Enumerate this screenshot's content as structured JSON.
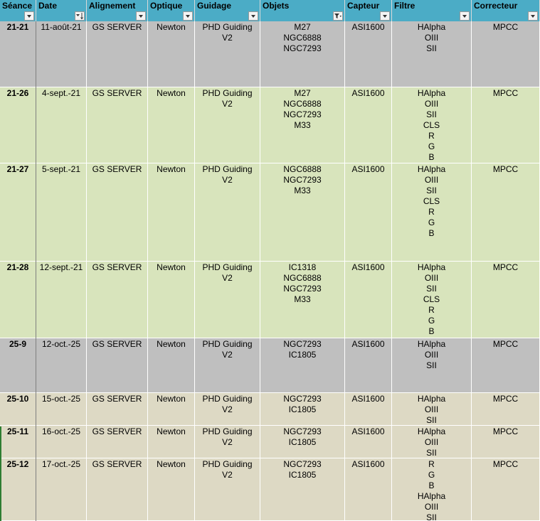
{
  "columns": [
    {
      "key": "seance",
      "label": "Séance",
      "filter": "dropdown"
    },
    {
      "key": "date",
      "label": "Date",
      "filter": "sorted"
    },
    {
      "key": "alignement",
      "label": "Alignement",
      "filter": "dropdown"
    },
    {
      "key": "optique",
      "label": "Optique",
      "filter": "dropdown"
    },
    {
      "key": "guidage",
      "label": "Guidage",
      "filter": "dropdown"
    },
    {
      "key": "objets",
      "label": "Objets",
      "filter": "filtered"
    },
    {
      "key": "capteur",
      "label": "Capteur",
      "filter": "dropdown"
    },
    {
      "key": "filtre",
      "label": "Filtre",
      "filter": "dropdown"
    },
    {
      "key": "correcteur",
      "label": "Correcteur",
      "filter": "dropdown"
    }
  ],
  "colors": {
    "header": "#4bacc6",
    "gray": "#bfbfbf",
    "green": "#d8e4bc",
    "tan": "#ddd9c4"
  },
  "rows": [
    {
      "color": "gray",
      "seance": "21-21",
      "date": "11-août-21",
      "alignement": "GS SERVER",
      "optique": "Newton",
      "guidage": [
        "PHD Guiding",
        "V2"
      ],
      "objets": [
        "M27",
        "NGC6888",
        "NGC7293"
      ],
      "capteur": "ASI1600",
      "filtre": [
        "HAlpha",
        "OIII",
        "SII"
      ],
      "correcteur": "MPCC"
    },
    {
      "color": "green",
      "seance": "21-26",
      "date": "4-sept.-21",
      "alignement": "GS SERVER",
      "optique": "Newton",
      "guidage": [
        "PHD Guiding",
        "V2"
      ],
      "objets": [
        "M27",
        "NGC6888",
        "NGC7293",
        "M33"
      ],
      "capteur": "ASI1600",
      "filtre": [
        "HAlpha",
        "OIII",
        "SII",
        "CLS",
        "R",
        "G",
        "B"
      ],
      "correcteur": "MPCC"
    },
    {
      "color": "green",
      "seance": "21-27",
      "date": "5-sept.-21",
      "alignement": "GS SERVER",
      "optique": "Newton",
      "guidage": [
        "PHD Guiding",
        "V2"
      ],
      "objets": [
        "NGC6888",
        "NGC7293",
        "M33"
      ],
      "capteur": "ASI1600",
      "filtre": [
        "HAlpha",
        "OIII",
        "SII",
        "CLS",
        "R",
        "G",
        "B"
      ],
      "correcteur": "MPCC"
    },
    {
      "color": "green",
      "seance": "21-28",
      "date": "12-sept.-21",
      "alignement": "GS SERVER",
      "optique": "Newton",
      "guidage": [
        "PHD Guiding",
        "V2"
      ],
      "objets": [
        "IC1318",
        "NGC6888",
        "NGC7293",
        "M33"
      ],
      "capteur": "ASI1600",
      "filtre": [
        "HAlpha",
        "OIII",
        "SII",
        "CLS",
        "R",
        "G",
        "B"
      ],
      "correcteur": "MPCC"
    },
    {
      "color": "gray",
      "seance": "25-9",
      "date": "12-oct.-25",
      "alignement": "GS SERVER",
      "optique": "Newton",
      "guidage": [
        "PHD Guiding",
        "V2"
      ],
      "objets": [
        "NGC7293",
        "IC1805"
      ],
      "capteur": "ASI1600",
      "filtre": [
        "HAlpha",
        "OIII",
        "SII"
      ],
      "correcteur": "MPCC"
    },
    {
      "color": "tan",
      "seance": "25-10",
      "date": "15-oct.-25",
      "alignement": "GS SERVER",
      "optique": "Newton",
      "guidage": [
        "PHD Guiding",
        "V2"
      ],
      "objets": [
        "NGC7293",
        "IC1805"
      ],
      "capteur": "ASI1600",
      "filtre": [
        "HAlpha",
        "OIII",
        "SII"
      ],
      "correcteur": "MPCC"
    },
    {
      "color": "tan",
      "seance": "25-11",
      "date": "16-oct.-25",
      "alignement": "GS SERVER",
      "optique": "Newton",
      "guidage": [
        "PHD Guiding",
        "V2"
      ],
      "objets": [
        "NGC7293",
        "IC1805"
      ],
      "capteur": "ASI1600",
      "filtre": [
        "HAlpha",
        "OIII",
        "SII"
      ],
      "correcteur": "MPCC"
    },
    {
      "color": "tan",
      "seance": "25-12",
      "date": "17-oct.-25",
      "alignement": "GS SERVER",
      "optique": "Newton",
      "guidage": [
        "PHD Guiding",
        "V2"
      ],
      "objets": [
        "NGC7293",
        "IC1805"
      ],
      "capteur": "ASI1600",
      "filtre": [
        "R",
        "G",
        "B",
        "HAlpha",
        "OIII",
        "SII"
      ],
      "correcteur": "MPCC"
    }
  ]
}
